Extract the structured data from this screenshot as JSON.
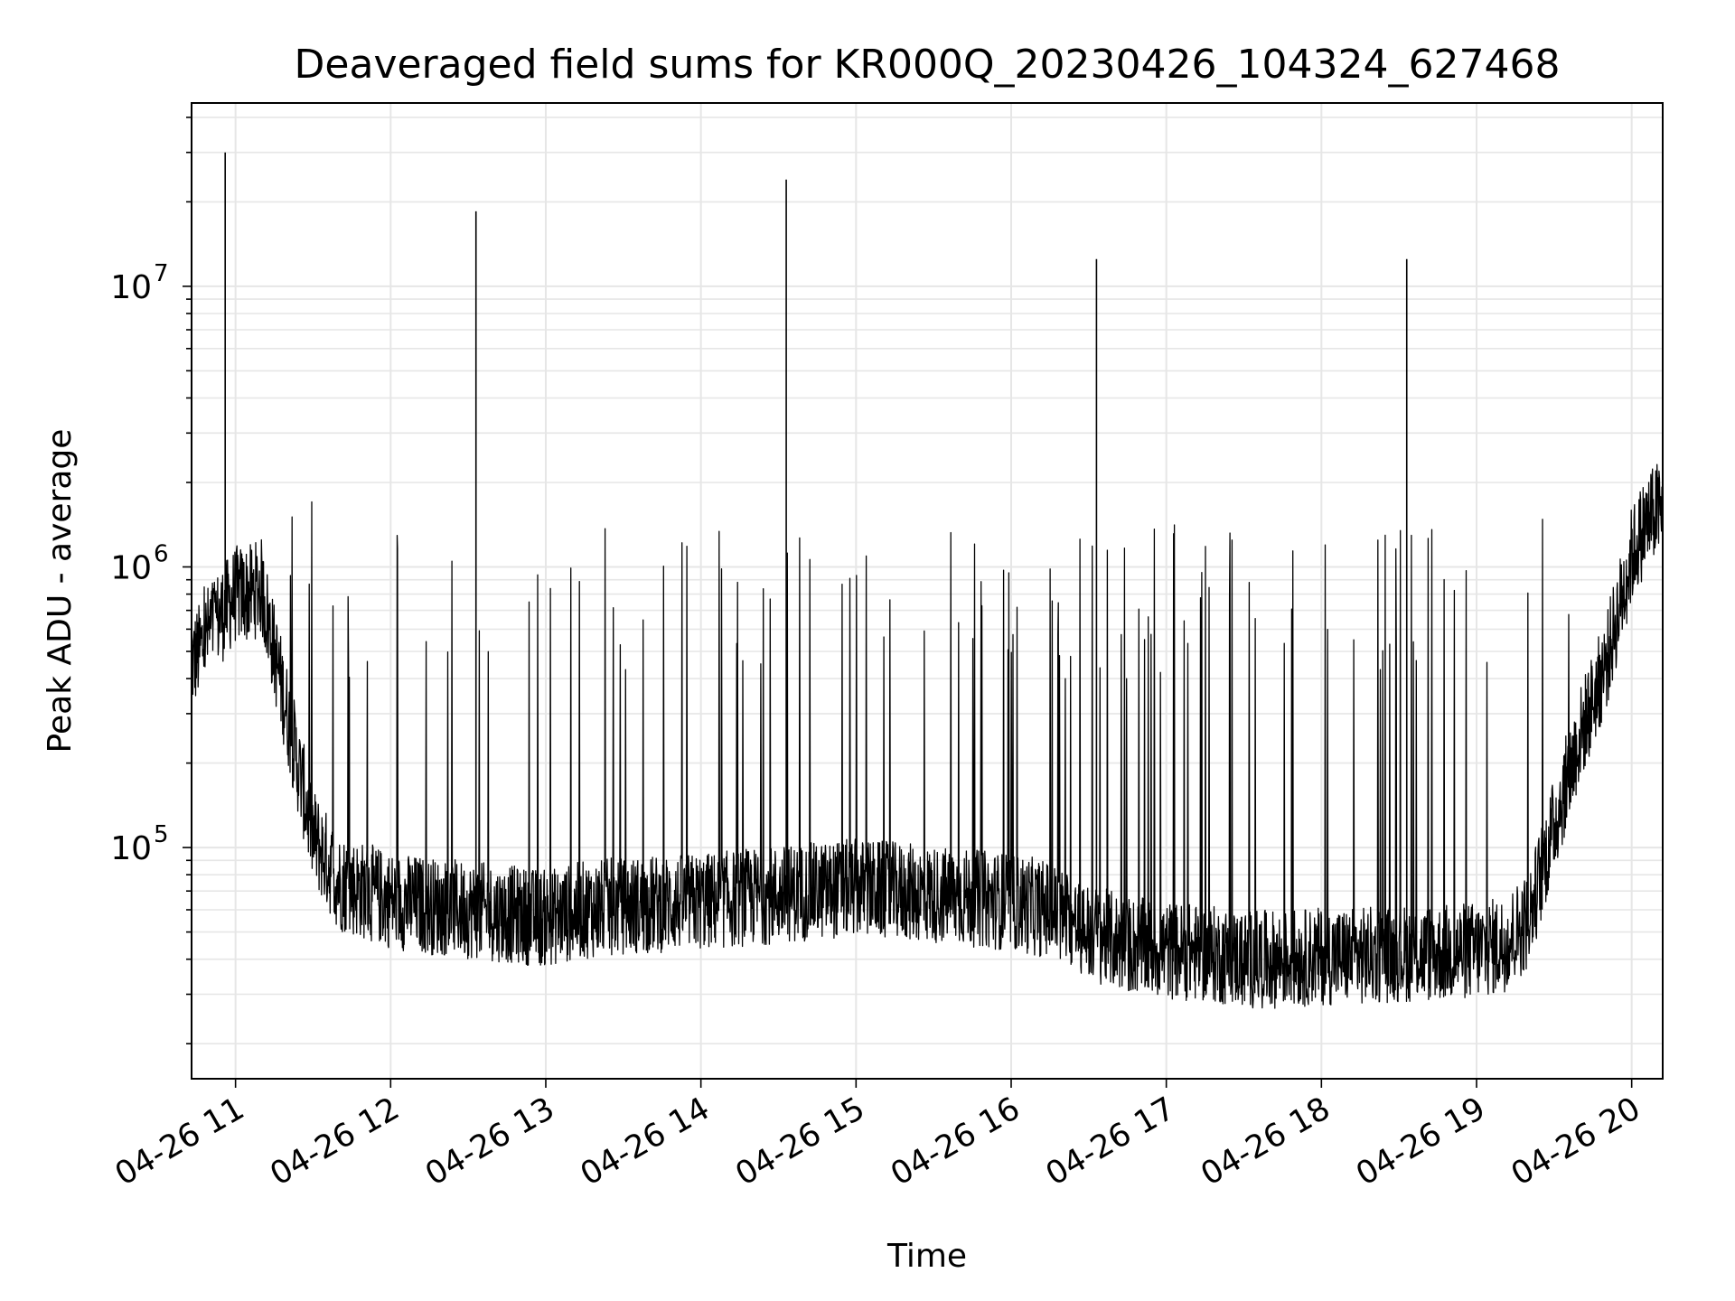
{
  "chart_data": {
    "type": "line",
    "title": "Deaveraged field sums for KR000Q_20230426_104324_627468",
    "xlabel": "Time",
    "ylabel": "Peak ADU - average",
    "y_scale": "log",
    "ylim": [
      15000,
      45000000
    ],
    "xlim": [
      "2023-04-26 10:43",
      "2023-04-26 20:12"
    ],
    "grid": true,
    "line_color": "#000000",
    "grid_color": "#e6e6e6",
    "x_ticks": [
      "04-26 11",
      "04-26 12",
      "04-26 13",
      "04-26 14",
      "04-26 15",
      "04-26 16",
      "04-26 17",
      "04-26 18",
      "04-26 19",
      "04-26 20"
    ],
    "y_ticks": [
      {
        "base": "10",
        "exp": "5",
        "value": 100000
      },
      {
        "base": "10",
        "exp": "6",
        "value": 1000000
      },
      {
        "base": "10",
        "exp": "7",
        "value": 10000000
      }
    ],
    "series": [
      {
        "x": [
          "10:43",
          "10:46",
          "10:50",
          "10:53",
          "10:56",
          "11:00",
          "11:05",
          "11:10",
          "11:15",
          "11:20",
          "11:25",
          "11:30",
          "11:40",
          "11:50",
          "12:00",
          "12:15",
          "12:30",
          "12:45",
          "13:00",
          "13:15",
          "13:30",
          "13:45",
          "14:00",
          "14:15",
          "14:30",
          "14:45",
          "15:00",
          "15:15",
          "15:30",
          "15:45",
          "16:00",
          "16:15",
          "16:30",
          "16:45",
          "17:00",
          "17:15",
          "17:30",
          "17:45",
          "18:00",
          "18:15",
          "18:30",
          "18:45",
          "19:00",
          "19:10",
          "19:20",
          "19:30",
          "19:40",
          "19:50",
          "20:00",
          "20:05",
          "20:10",
          "20:12"
        ],
        "y": [
          450000,
          500000,
          600000,
          650000,
          700000,
          800000,
          800000,
          850000,
          500000,
          300000,
          180000,
          110000,
          75000,
          70000,
          65000,
          62000,
          60000,
          58000,
          56000,
          60000,
          62000,
          63000,
          64000,
          66000,
          68000,
          70000,
          72000,
          70000,
          68000,
          66000,
          64000,
          60000,
          50000,
          45000,
          43000,
          42000,
          40000,
          40000,
          41000,
          41000,
          42000,
          42000,
          43000,
          45000,
          55000,
          120000,
          250000,
          450000,
          1100000,
          1400000,
          1600000,
          1500000
        ]
      }
    ],
    "spikes": [
      {
        "x": "10:56",
        "y": 30000000
      },
      {
        "x": "12:33",
        "y": 18500000
      },
      {
        "x": "14:33",
        "y": 24000000
      },
      {
        "x": "16:33",
        "y": 12500000
      },
      {
        "x": "18:33",
        "y": 12500000
      }
    ]
  }
}
